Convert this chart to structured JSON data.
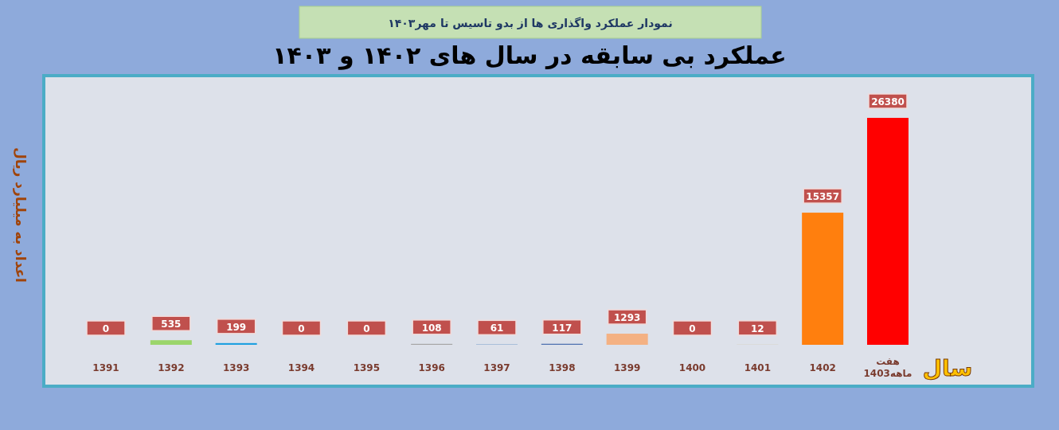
{
  "chart_data": {
    "type": "bar",
    "title": "عملکرد بی سابقه در سال های ۱۴۰۲ و ۱۴۰۳",
    "subtitle": "نمودار عملکرد واگذاری ها از بدو تاسیس تا مهر۱۴۰۳",
    "xlabel": "سال",
    "ylabel": "اعداد به میلیارد ریال",
    "categories": [
      "1391",
      "1392",
      "1393",
      "1394",
      "1395",
      "1396",
      "1397",
      "1398",
      "1399",
      "1400",
      "1401",
      "1402",
      "هفت ماهه1403"
    ],
    "values": [
      0,
      535,
      199,
      0,
      0,
      108,
      61,
      117,
      1293,
      0,
      12,
      15357,
      26380
    ],
    "colors": [
      "#7f7f7f",
      "#9bd56b",
      "#1fa0e0",
      "#5b2a8c",
      "#e00000",
      "#a5a5a5",
      "#8eaed0",
      "#4f72b0",
      "#f4b183",
      "#c8b46a",
      "#c9b36e",
      "#ff7f0e",
      "#ff0000"
    ],
    "data_labels": true
  }
}
